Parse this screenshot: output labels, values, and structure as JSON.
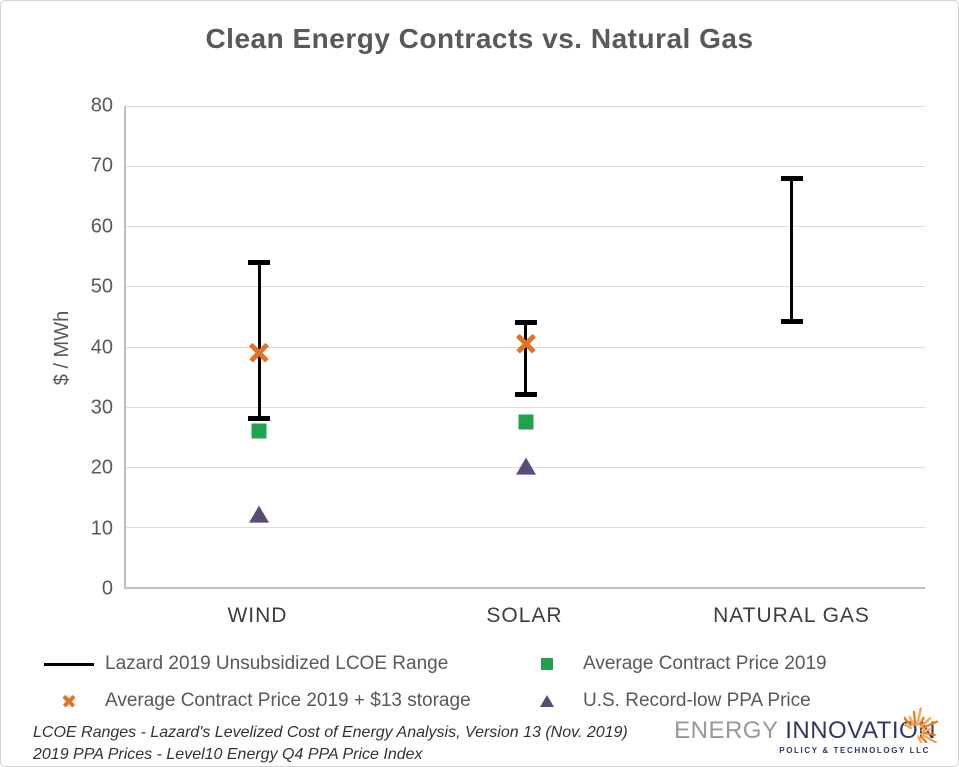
{
  "chart_data": {
    "type": "scatter",
    "title": "Clean Energy Contracts vs. Natural Gas",
    "xlabel": "",
    "ylabel": "$ / MWh",
    "ylim": [
      0,
      80
    ],
    "ytick_step": 10,
    "grid": true,
    "legend_position": "bottom",
    "categories": [
      "WIND",
      "SOLAR",
      "NATURAL GAS"
    ],
    "series": [
      {
        "name": "Lazard 2019 Unsubsidized LCOE Range",
        "marker": "range",
        "color": "#000000",
        "values": [
          [
            28,
            54
          ],
          [
            32,
            44
          ],
          [
            44,
            68
          ]
        ]
      },
      {
        "name": "Average Contract Price 2019",
        "marker": "square",
        "color": "#21a24e",
        "values": [
          26,
          27.5,
          null
        ]
      },
      {
        "name": "Average Contract Price 2019 + $13 storage",
        "marker": "x",
        "color": "#df7426",
        "values": [
          39,
          40.5,
          null
        ]
      },
      {
        "name": "U.S. Record-low PPA Price",
        "marker": "triangle",
        "color": "#5b4b77",
        "values": [
          12,
          20,
          null
        ]
      }
    ]
  },
  "footnotes": [
    "LCOE Ranges - Lazard's Levelized Cost of Energy Analysis, Version 13 (Nov. 2019)",
    "2019 PPA Prices - Level10 Energy Q4 PPA Price Index"
  ],
  "logo": {
    "name_part1": "ENERGY ",
    "name_part2": "INNOVATION",
    "tagline": "POLICY & TECHNOLOGY LLC"
  },
  "colors": {
    "title_text": "#595959",
    "axis_text": "#595959",
    "gridline": "#dcdcdc",
    "axis_line": "#bfbfbf",
    "lcoe_range": "#000000",
    "avg_contract": "#21a24e",
    "storage_x": "#df7426",
    "record_low_ppa": "#5b4b77",
    "logo_navy": "#2c3968",
    "logo_gray": "#97999c",
    "logo_orange": "#e87e23"
  }
}
